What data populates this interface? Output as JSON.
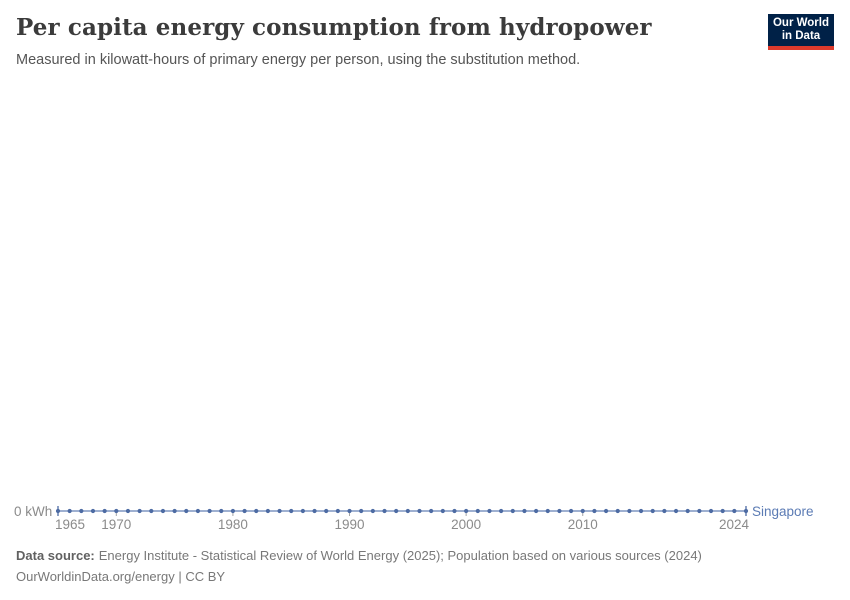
{
  "header": {
    "title": "Per capita energy consumption from hydropower",
    "subtitle": "Measured in kilowatt-hours of primary energy per person, using the substitution method.",
    "logo": {
      "line1": "Our World",
      "line2": "in Data",
      "background_color": "#002147",
      "accent_color": "#dc3a2c"
    }
  },
  "chart_data": {
    "type": "line",
    "title": "Per capita energy consumption from hydropower",
    "xlabel": "",
    "ylabel": "kWh",
    "y_axis_label": "0 kWh",
    "x": [
      1965,
      1966,
      1967,
      1968,
      1969,
      1970,
      1971,
      1972,
      1973,
      1974,
      1975,
      1976,
      1977,
      1978,
      1979,
      1980,
      1981,
      1982,
      1983,
      1984,
      1985,
      1986,
      1987,
      1988,
      1989,
      1990,
      1991,
      1992,
      1993,
      1994,
      1995,
      1996,
      1997,
      1998,
      1999,
      2000,
      2001,
      2002,
      2003,
      2004,
      2005,
      2006,
      2007,
      2008,
      2009,
      2010,
      2011,
      2012,
      2013,
      2014,
      2015,
      2016,
      2017,
      2018,
      2019,
      2020,
      2021,
      2022,
      2023,
      2024
    ],
    "series": [
      {
        "name": "Singapore",
        "color": "#4d6ba3",
        "line_color": "#7e95c2",
        "label_color": "#5b7bb4",
        "values": [
          0,
          0,
          0,
          0,
          0,
          0,
          0,
          0,
          0,
          0,
          0,
          0,
          0,
          0,
          0,
          0,
          0,
          0,
          0,
          0,
          0,
          0,
          0,
          0,
          0,
          0,
          0,
          0,
          0,
          0,
          0,
          0,
          0,
          0,
          0,
          0,
          0,
          0,
          0,
          0,
          0,
          0,
          0,
          0,
          0,
          0,
          0,
          0,
          0,
          0,
          0,
          0,
          0,
          0,
          0,
          0,
          0,
          0,
          0,
          0
        ]
      }
    ],
    "x_ticks": [
      1965,
      1970,
      1980,
      1990,
      2000,
      2010,
      2024
    ],
    "ylim": [
      0,
      0
    ],
    "grid": false,
    "legend_position": "right-of-line-end",
    "axis_text_color": "#8b8b8b",
    "tick_color": "#a5a5a5"
  },
  "footer": {
    "datasource_label": "Data source:",
    "datasource_text": "Energy Institute - Statistical Review of World Energy (2025); Population based on various sources (2024)",
    "license_text": "OurWorldinData.org/energy | CC BY"
  }
}
